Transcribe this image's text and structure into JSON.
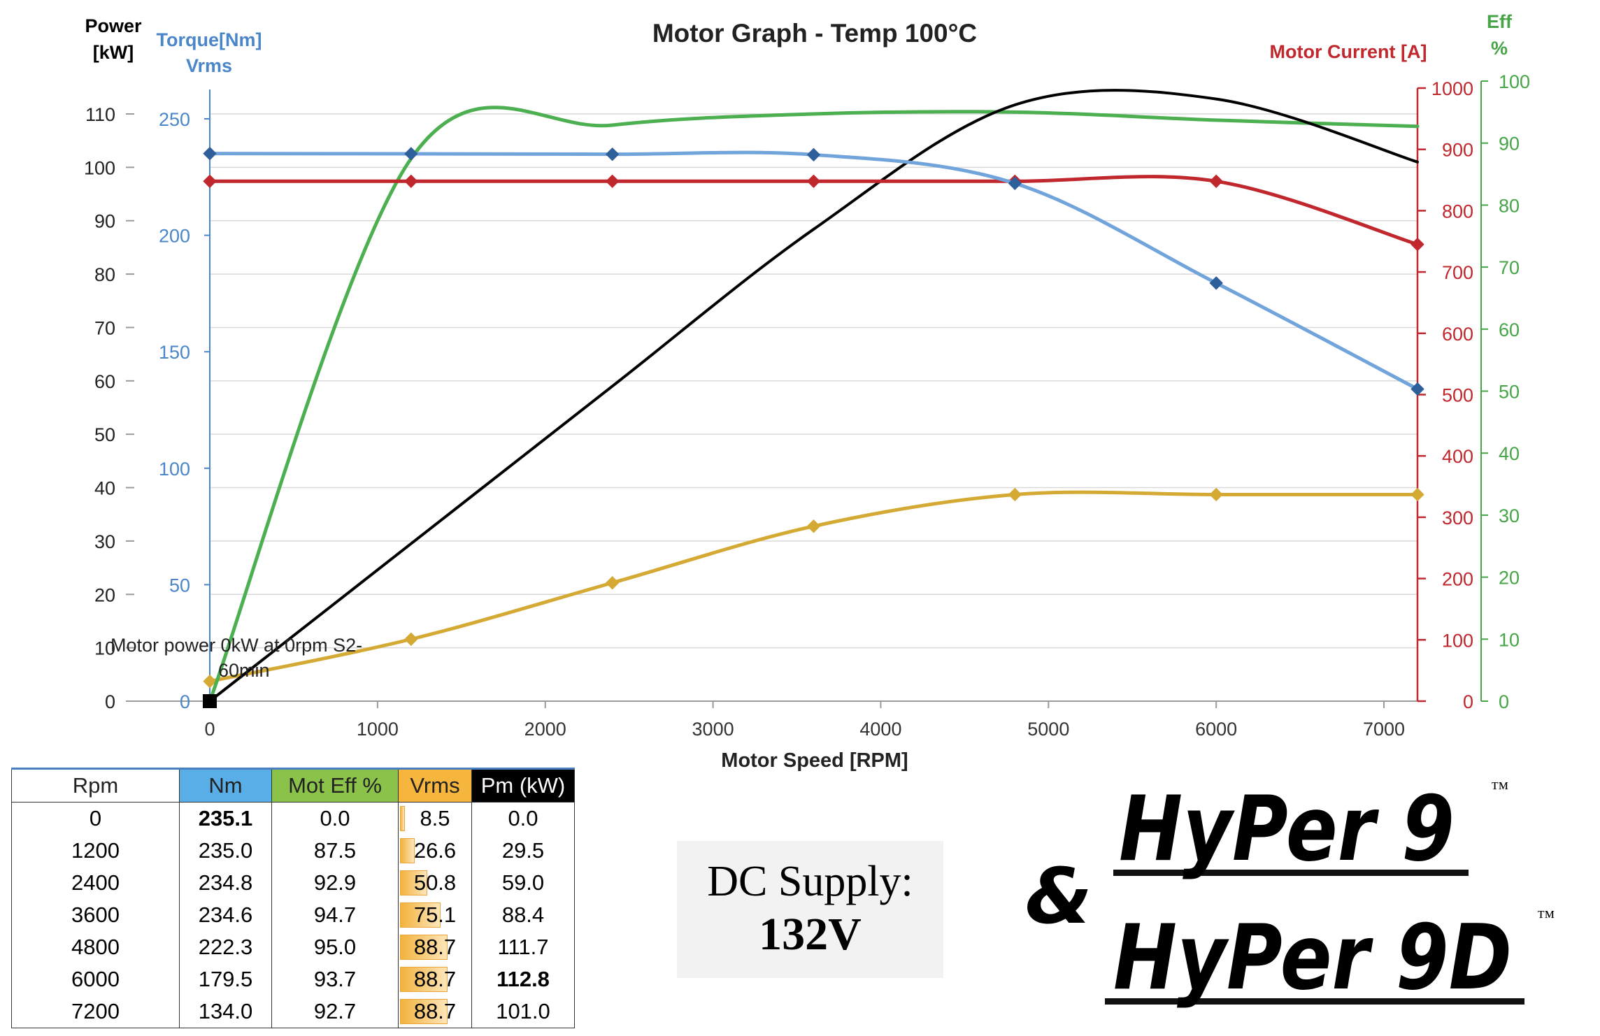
{
  "chart_data": {
    "type": "line",
    "title": "Motor Graph - Temp 100°C",
    "xlabel": "Motor Speed [RPM]",
    "xlim": [
      -200,
      7200
    ],
    "x_ticks": [
      "0",
      "1000",
      "2000",
      "3000",
      "4000",
      "5000",
      "6000",
      "7000"
    ],
    "axes": {
      "power": {
        "label_line1": "Power",
        "label_line2": "[kW]",
        "ylim": [
          0,
          110
        ],
        "ticks": [
          "0",
          "10",
          "20",
          "30",
          "40",
          "50",
          "60",
          "70",
          "80",
          "90",
          "100",
          "110"
        ],
        "color": "#000000"
      },
      "torque": {
        "label_line1": "Torque[Nm]",
        "label_line2": "Vrms",
        "ylim": [
          0,
          250
        ],
        "ticks": [
          "0",
          "50",
          "100",
          "150",
          "200",
          "250"
        ],
        "color": "#4a86c8"
      },
      "current": {
        "label": "Motor Current [A]",
        "ylim": [
          0,
          1000
        ],
        "ticks": [
          "0",
          "100",
          "200",
          "300",
          "400",
          "500",
          "600",
          "700",
          "800",
          "900",
          "1000"
        ],
        "color": "#c0282d"
      },
      "eff": {
        "label_line1": "Eff",
        "label_line2": "%",
        "ylim": [
          0,
          100
        ],
        "ticks": [
          "0",
          "10",
          "20",
          "30",
          "40",
          "50",
          "60",
          "70",
          "80",
          "90",
          "100"
        ],
        "color": "#46a546"
      }
    },
    "series": [
      {
        "id": "torque",
        "axis": "torque",
        "color": "#72a4dc",
        "marker": "#2e5f9a",
        "x": [
          0,
          1200,
          2400,
          3600,
          4800,
          6000,
          7200
        ],
        "y": [
          235.1,
          235.0,
          234.8,
          234.6,
          222.3,
          179.5,
          134.0
        ]
      },
      {
        "id": "current",
        "axis": "current",
        "color": "#c0282d",
        "marker": "#c0282d",
        "x": [
          0,
          1200,
          2400,
          3600,
          4800,
          6000,
          7200
        ],
        "y": [
          848,
          848,
          848,
          848,
          848,
          848,
          745
        ]
      },
      {
        "id": "vrms",
        "axis": "torque",
        "color": "#d4aa35",
        "marker": "#d4aa35",
        "x": [
          0,
          1200,
          2400,
          3600,
          4800,
          6000,
          7200
        ],
        "y": [
          8.5,
          26.6,
          50.8,
          75.1,
          88.7,
          88.7,
          88.7
        ]
      },
      {
        "id": "efficiency",
        "axis": "eff",
        "color": "#4caf50",
        "x": [
          0,
          1200,
          2400,
          3600,
          4800,
          6000,
          7200
        ],
        "y": [
          0.0,
          87.5,
          92.9,
          94.7,
          95.0,
          93.7,
          92.7
        ]
      },
      {
        "id": "power",
        "axis": "power",
        "color": "#000000",
        "x": [
          0,
          1200,
          2400,
          3600,
          4800,
          6000,
          7200
        ],
        "y": [
          0.0,
          29.5,
          59.0,
          88.4,
          111.7,
          112.8,
          101.0
        ]
      }
    ],
    "annotation": {
      "text_line1": "Motor power 0kW at 0rpm S2-",
      "text_line2": "60min",
      "x": 0,
      "y": 0
    }
  },
  "table": {
    "headers": [
      "Rpm",
      "Nm",
      "Mot Eff %",
      "Vrms",
      "Pm (kW)"
    ],
    "header_colors": [
      "#ffffff",
      "#5aaee8",
      "#8bc34a",
      "#f6b53c",
      "#000000"
    ],
    "rows": [
      [
        "0",
        "235.1",
        "0.0",
        "8.5",
        "0.0"
      ],
      [
        "1200",
        "235.0",
        "87.5",
        "26.6",
        "29.5"
      ],
      [
        "2400",
        "234.8",
        "92.9",
        "50.8",
        "59.0"
      ],
      [
        "3600",
        "234.6",
        "94.7",
        "75.1",
        "88.4"
      ],
      [
        "4800",
        "222.3",
        "95.0",
        "88.7",
        "111.7"
      ],
      [
        "6000",
        "179.5",
        "93.7",
        "88.7",
        "112.8"
      ],
      [
        "7200",
        "134.0",
        "92.7",
        "88.7",
        "101.0"
      ]
    ],
    "vrms_bar_fraction": [
      0.1,
      0.31,
      0.57,
      0.85,
      1.0,
      1.0,
      1.0
    ],
    "bold_nm_row": 0,
    "bold_pm_row": 5
  },
  "dc_supply": {
    "label": "DC Supply:",
    "value": "132V"
  },
  "logo": {
    "line1": "HyPer 9",
    "ampersand": "&",
    "line2": "HyPer 9D",
    "tm": "™"
  }
}
